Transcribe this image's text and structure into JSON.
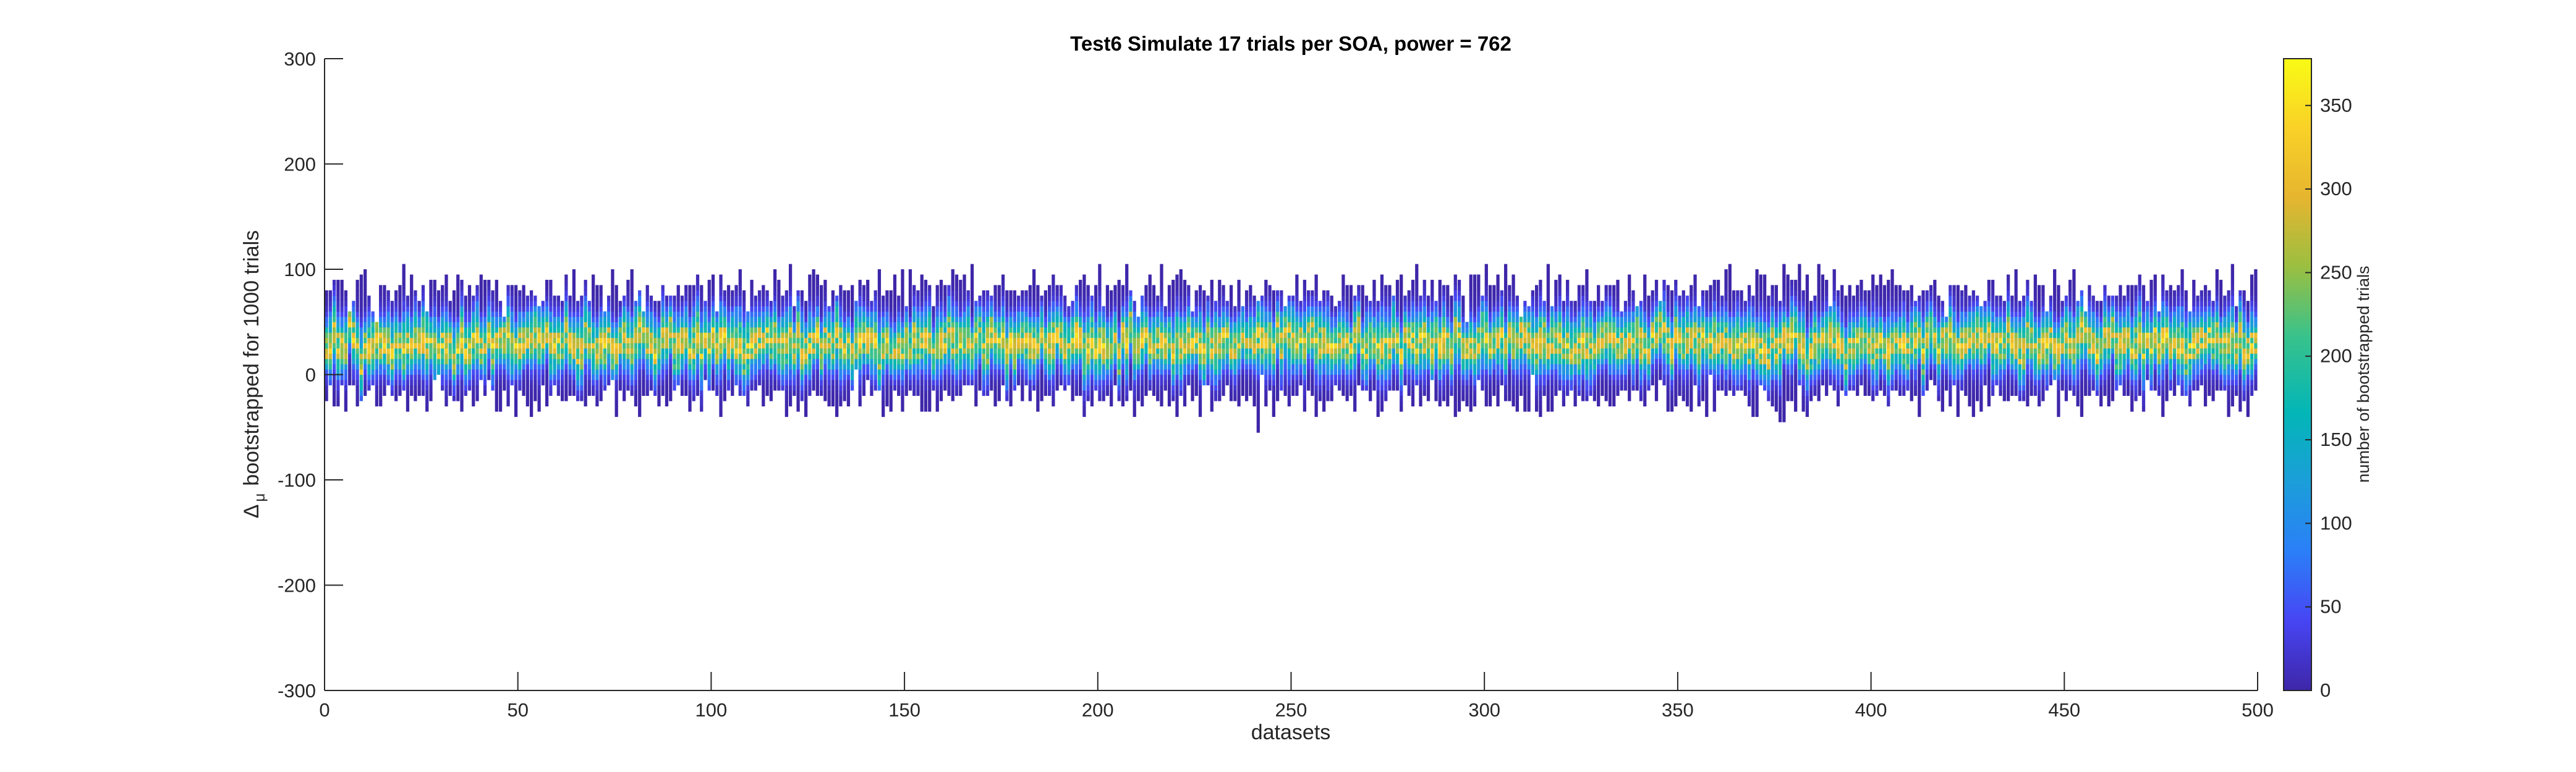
{
  "chart_data": {
    "type": "heatmap",
    "title": "Test6 Simulate 17 trials per SOA, power = 762",
    "xlabel": "datasets",
    "ylabel_symbol": "Δ",
    "ylabel_subscript": "μ",
    "ylabel_text": "bootstrapped for 1000 trials",
    "xlim": [
      0,
      500
    ],
    "ylim": [
      -300,
      300
    ],
    "xticks": [
      0,
      50,
      100,
      150,
      200,
      250,
      300,
      350,
      400,
      450,
      500
    ],
    "xtick_labels": [
      "0",
      "50",
      "100",
      "150",
      "200",
      "250",
      "300",
      "350",
      "400",
      "450",
      "500"
    ],
    "yticks": [
      300,
      200,
      100,
      0,
      -100,
      -200,
      -300
    ],
    "ytick_labels": [
      "300",
      "200",
      "100",
      "0",
      "-100",
      "-200",
      "-300"
    ],
    "n_datasets": 500,
    "bin_width": 5,
    "typical_center": 30,
    "typical_range": [
      -20,
      80
    ],
    "max_observed": 105,
    "min_observed": -52,
    "colorbar": {
      "label": "number of bootstrapped trials",
      "lim": [
        0,
        378
      ],
      "ticks": [
        0,
        50,
        100,
        150,
        200,
        250,
        300,
        350
      ],
      "tick_labels": [
        "0",
        "50",
        "100",
        "150",
        "200",
        "250",
        "300",
        "350"
      ],
      "colormap": "parula",
      "colors": [
        "#3e26a8",
        "#4745f3",
        "#2b7ff8",
        "#1b9ed9",
        "#03b6b7",
        "#38c28c",
        "#9abf41",
        "#e6b52f",
        "#f9d127",
        "#f9fb15"
      ]
    }
  }
}
